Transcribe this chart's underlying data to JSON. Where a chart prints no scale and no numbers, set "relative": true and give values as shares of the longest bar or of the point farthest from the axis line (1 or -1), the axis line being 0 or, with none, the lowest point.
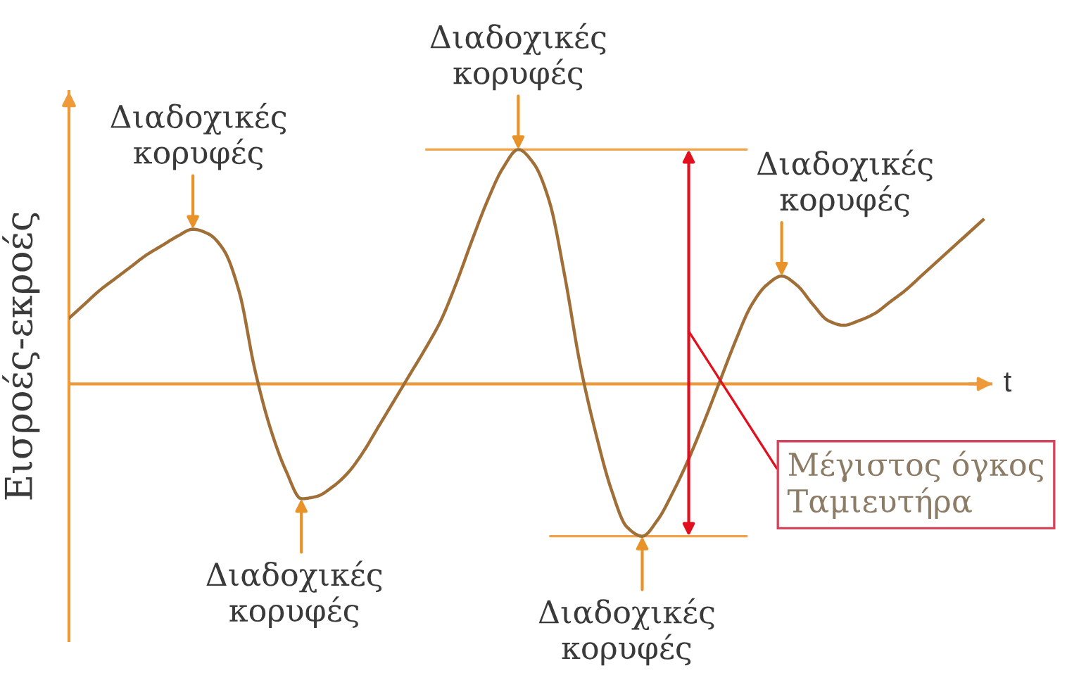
{
  "chart_data": {
    "type": "line",
    "xlabel": "t",
    "ylabel": "Εισροές-εκροές",
    "relative": true,
    "categories": [
      null,
      null,
      null,
      null,
      null,
      null,
      null,
      null,
      null,
      null,
      null,
      null,
      null,
      null,
      null,
      null,
      null,
      null,
      null,
      null,
      null,
      null,
      null,
      null,
      null,
      null,
      null,
      null,
      null,
      null,
      null,
      null,
      null,
      null,
      null,
      null,
      null,
      null,
      null,
      null,
      null,
      null,
      null,
      null,
      null,
      null,
      null,
      null,
      null,
      null,
      null,
      null,
      null,
      null,
      null,
      null,
      null,
      null,
      null,
      null
    ],
    "series": [
      {
        "color": "#a06f38",
        "values": [
          0.28,
          0.34,
          0.4,
          0.45,
          0.5,
          0.55,
          0.59,
          0.63,
          0.66,
          0.64,
          0.57,
          0.39,
          0.06,
          -0.19,
          -0.37,
          -0.49,
          -0.48,
          -0.44,
          -0.38,
          -0.29,
          -0.18,
          -0.07,
          0.04,
          0.15,
          0.27,
          0.43,
          0.61,
          0.78,
          0.92,
          1,
          0.94,
          0.78,
          0.46,
          0.08,
          -0.21,
          -0.45,
          -0.61,
          -0.65,
          -0.58,
          -0.46,
          -0.32,
          -0.16,
          0.01,
          0.18,
          0.33,
          0.42,
          0.46,
          0.42,
          0.34,
          0.27,
          0.25,
          0.27,
          0.3,
          0.35,
          0.4,
          0.46,
          0.52,
          0.58,
          0.64,
          0.7
        ]
      }
    ],
    "ref_lines": [
      {
        "axis": "y",
        "value": 0,
        "color": "#ee9a3a"
      },
      {
        "axis": "y",
        "value": 1,
        "color": "#f2a24a"
      },
      {
        "axis": "y",
        "value": -0.65,
        "color": "#f2a24a"
      }
    ],
    "annotations": [
      {
        "text": "Διαδοχικές\nκορυφές",
        "y": 0.66
      },
      {
        "text": "Διαδοχικές\nκορυφές",
        "y": -0.49
      },
      {
        "text": "Διαδοχικές\nκορυφές",
        "y": 1
      },
      {
        "text": "Διαδοχικές\nκορυφές",
        "y": -0.65
      },
      "Διαδοχικές\nκορυφές",
      "Μέγιστος όγκος\nΤαμιευτήρα"
    ]
  }
}
